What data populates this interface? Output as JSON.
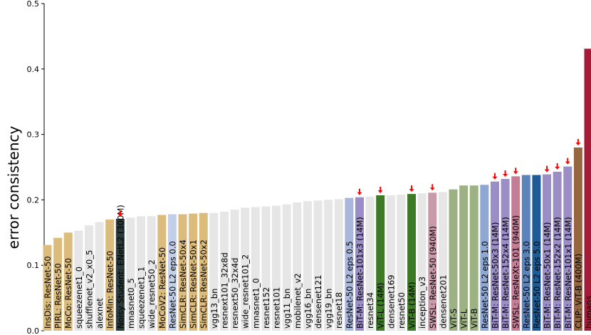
{
  "chart_data": {
    "type": "bar",
    "ylabel": "error consistency",
    "xlabel": "",
    "title": "",
    "ylim": [
      0.0,
      0.5
    ],
    "yticks": [
      0.0,
      0.1,
      0.2,
      0.3,
      0.4,
      0.5
    ],
    "ytick_labels": [
      "0.0",
      "0.1",
      "0.2",
      "0.3",
      "0.4",
      "0.5"
    ],
    "grid": false,
    "marker_glyph": "↓",
    "bars": [
      {
        "label": "InsDis: ResNet-50",
        "value": 0.131,
        "color": "#dcbc7c",
        "marker": false
      },
      {
        "label": "PIRL: ResNet-50",
        "value": 0.142,
        "color": "#dcbc7c",
        "marker": false
      },
      {
        "label": "MoCo: ResNet-50",
        "value": 0.15,
        "color": "#dcbc7c",
        "marker": false
      },
      {
        "label": "squeezenet1_0",
        "value": 0.153,
        "color": "#e6e6e6",
        "marker": false
      },
      {
        "label": "shufflenet_v2_x0_5",
        "value": 0.161,
        "color": "#e6e6e6",
        "marker": false
      },
      {
        "label": "alexnet",
        "value": 0.166,
        "color": "#e6e6e6",
        "marker": false
      },
      {
        "label": "InfoMin: ResNet-50",
        "value": 0.17,
        "color": "#dcbc7c",
        "marker": false
      },
      {
        "label": "Noisy Student: ENetL2 (300M)",
        "value": 0.171,
        "color": "#2b3a3a",
        "marker": true
      },
      {
        "label": "mnasnet0_5",
        "value": 0.173,
        "color": "#e6e6e6",
        "marker": false
      },
      {
        "label": "squeezenet1_1",
        "value": 0.175,
        "color": "#e6e6e6",
        "marker": false
      },
      {
        "label": "wide_resnet50_2",
        "value": 0.175,
        "color": "#e6e6e6",
        "marker": false
      },
      {
        "label": "MoCoV2: ResNet-50",
        "value": 0.177,
        "color": "#dcbc7c",
        "marker": false
      },
      {
        "label": "ResNet-50 L2 eps 0.0",
        "value": 0.178,
        "color": "#c3cfe9",
        "marker": false
      },
      {
        "label": "SimCLR: ResNet-50x4",
        "value": 0.178,
        "color": "#dcbc7c",
        "marker": false
      },
      {
        "label": "SimCLR: ResNet-50x1",
        "value": 0.179,
        "color": "#dcbc7c",
        "marker": false
      },
      {
        "label": "SimCLR: ResNet-50x2",
        "value": 0.18,
        "color": "#dcbc7c",
        "marker": false
      },
      {
        "label": "vgg13_bn",
        "value": 0.18,
        "color": "#e6e6e6",
        "marker": false
      },
      {
        "label": "resnext101_32x8d",
        "value": 0.182,
        "color": "#e6e6e6",
        "marker": false
      },
      {
        "label": "resnext50_32x4d",
        "value": 0.185,
        "color": "#e6e6e6",
        "marker": false
      },
      {
        "label": "wide_resnet101_2",
        "value": 0.188,
        "color": "#e6e6e6",
        "marker": false
      },
      {
        "label": "mnasnet1_0",
        "value": 0.189,
        "color": "#e6e6e6",
        "marker": false
      },
      {
        "label": "resnet152",
        "value": 0.19,
        "color": "#e6e6e6",
        "marker": false
      },
      {
        "label": "resnet101",
        "value": 0.191,
        "color": "#e6e6e6",
        "marker": false
      },
      {
        "label": "vgg11_bn",
        "value": 0.193,
        "color": "#e6e6e6",
        "marker": false
      },
      {
        "label": "mobilenet_v2",
        "value": 0.196,
        "color": "#e6e6e6",
        "marker": false
      },
      {
        "label": "vgg16_bn",
        "value": 0.198,
        "color": "#e6e6e6",
        "marker": false
      },
      {
        "label": "densenet121",
        "value": 0.199,
        "color": "#e6e6e6",
        "marker": false
      },
      {
        "label": "vgg19_bn",
        "value": 0.2,
        "color": "#e6e6e6",
        "marker": false
      },
      {
        "label": "resnet18",
        "value": 0.201,
        "color": "#e6e6e6",
        "marker": false
      },
      {
        "label": "ResNet-50 L2 eps 0.5",
        "value": 0.203,
        "color": "#a9b7dc",
        "marker": false
      },
      {
        "label": "BiT-M: ResNet-101x3 (14M)",
        "value": 0.204,
        "color": "#9b8ec7",
        "marker": true
      },
      {
        "label": "resnet34",
        "value": 0.205,
        "color": "#e6e6e6",
        "marker": false
      },
      {
        "label": "ViT-L (14M)",
        "value": 0.207,
        "color": "#3e7a26",
        "marker": true
      },
      {
        "label": "densenet169",
        "value": 0.207,
        "color": "#e6e6e6",
        "marker": false
      },
      {
        "label": "resnet50",
        "value": 0.208,
        "color": "#e6e6e6",
        "marker": false
      },
      {
        "label": "ViT-B (14M)",
        "value": 0.209,
        "color": "#3e7a26",
        "marker": true
      },
      {
        "label": "inception_v3",
        "value": 0.21,
        "color": "#e6e6e6",
        "marker": false
      },
      {
        "label": "SWSL: ResNet-50 (940M)",
        "value": 0.211,
        "color": "#c99aaa",
        "marker": true
      },
      {
        "label": "densenet201",
        "value": 0.212,
        "color": "#e6e6e6",
        "marker": false
      },
      {
        "label": "ViT-S",
        "value": 0.216,
        "color": "#9cb283",
        "marker": false
      },
      {
        "label": "ViT-L",
        "value": 0.222,
        "color": "#9cb283",
        "marker": false
      },
      {
        "label": "ViT-B",
        "value": 0.222,
        "color": "#9cb283",
        "marker": false
      },
      {
        "label": "ResNet-50 L2 eps 1.0",
        "value": 0.223,
        "color": "#8ea8d3",
        "marker": false
      },
      {
        "label": "BiT-M: ResNet-50x3 (14M)",
        "value": 0.228,
        "color": "#9b8ec7",
        "marker": true
      },
      {
        "label": "BiT-M: ResNet-152x4 (14M)",
        "value": 0.232,
        "color": "#9b8ec7",
        "marker": true
      },
      {
        "label": "SWSL: ResNeXt-101 (940M)",
        "value": 0.236,
        "color": "#c37d94",
        "marker": true
      },
      {
        "label": "ResNet-50 L2 eps 3.0",
        "value": 0.238,
        "color": "#5b84bd",
        "marker": false
      },
      {
        "label": "ResNet-50 L2 eps 5.0",
        "value": 0.238,
        "color": "#1f5c97",
        "marker": false
      },
      {
        "label": "BiT-M: ResNet-50x1 (14M)",
        "value": 0.239,
        "color": "#9b8ec7",
        "marker": true
      },
      {
        "label": "BiT-M: ResNet-152x2 (14M)",
        "value": 0.243,
        "color": "#9b8ec7",
        "marker": true
      },
      {
        "label": "BiT-M: ResNet-101x1 (14M)",
        "value": 0.251,
        "color": "#9b8ec7",
        "marker": true
      },
      {
        "label": "CLIP: ViT-B (400M)",
        "value": 0.28,
        "color": "#966641",
        "marker": true
      },
      {
        "label": "humans",
        "value": 0.431,
        "color": "#a51c38",
        "marker": false
      }
    ]
  }
}
